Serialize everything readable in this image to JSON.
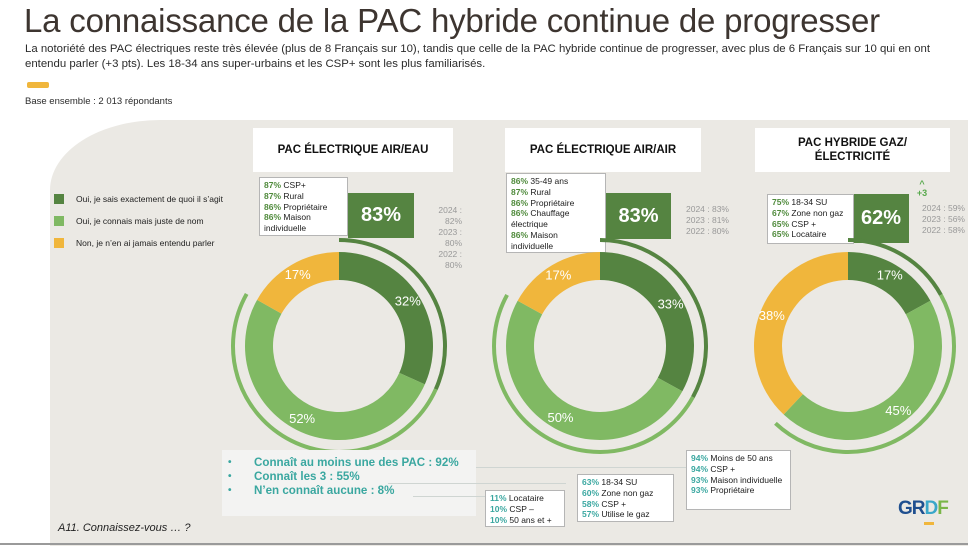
{
  "header": {
    "title": "La connaissance de la PAC hybride continue de progresser",
    "subtitle": "La notoriété des PAC électriques reste très élevée (plus de 8 Français sur 10), tandis que celle de la PAC hybride continue de progresser, avec plus de 6 Français sur 10 qui en ont entendu parler (+3 pts). Les 18-34 ans super-urbains et les CSP+ sont les plus familiarisés.",
    "base": "Base ensemble : 2 013 répondants"
  },
  "colors": {
    "dark_green": "#558441",
    "light_green": "#80b963",
    "orange": "#f0b63c",
    "teal": "#3aa7a0",
    "panel": "#ebe9e4"
  },
  "legend": [
    {
      "label": "Oui, je sais exactement de quoi il s’agit",
      "color": "#558441"
    },
    {
      "label": "Oui, je connais mais juste de nom",
      "color": "#80b963"
    },
    {
      "label": "Non, je n’en ai jamais entendu parler",
      "color": "#f0b63c"
    }
  ],
  "chart_data": [
    {
      "type": "pie",
      "title": "PAC ÉLECTRIQUE AIR/EAU",
      "categories": [
        "Oui, je sais exactement de quoi il s’agit",
        "Oui, je connais mais juste de nom",
        "Non, je n’en ai jamais entendu parler"
      ],
      "values": [
        32,
        52,
        17
      ],
      "labels": [
        "32%",
        "52%",
        "17%"
      ],
      "total_aware": "83%",
      "total_aware_value": 83,
      "history": [
        "2024 : 82%",
        "2023 : 80%",
        "2022 : 80%"
      ],
      "top_segments": [
        {
          "pct": "87%",
          "label": "CSP+"
        },
        {
          "pct": "87%",
          "label": "Rural"
        },
        {
          "pct": "86%",
          "label": "Propriétaire"
        },
        {
          "pct": "86%",
          "label": "Maison individuelle"
        }
      ]
    },
    {
      "type": "pie",
      "title": "PAC ÉLECTRIQUE AIR/AIR",
      "categories": [
        "Oui, je sais exactement de quoi il s’agit",
        "Oui, je connais mais juste de nom",
        "Non, je n’en ai jamais entendu parler"
      ],
      "values": [
        33,
        50,
        17
      ],
      "labels": [
        "33%",
        "50%",
        "17%"
      ],
      "total_aware": "83%",
      "total_aware_value": 83,
      "history": [
        "2024 : 83%",
        "2023 : 81%",
        "2022 : 80%"
      ],
      "top_segments": [
        {
          "pct": "86%",
          "label": "35-49 ans"
        },
        {
          "pct": "87%",
          "label": "Rural"
        },
        {
          "pct": "86%",
          "label": "Propriétaire"
        },
        {
          "pct": "86%",
          "label": "Chauffage électrique"
        },
        {
          "pct": "86%",
          "label": "Maison individuelle"
        }
      ]
    },
    {
      "type": "pie",
      "title": "PAC HYBRIDE GAZ/ÉLECTRICITÉ",
      "categories": [
        "Oui, je sais exactement de quoi il s’agit",
        "Oui, je connais mais juste de nom",
        "Non, je n’en ai jamais entendu parler"
      ],
      "values": [
        17,
        45,
        38
      ],
      "labels": [
        "17%",
        "45%",
        "38%"
      ],
      "total_aware": "62%",
      "total_aware_value": 62,
      "delta": "+3",
      "history": [
        "2024 : 59%",
        "2023 : 56%",
        "2022 : 58%"
      ],
      "top_segments": [
        {
          "pct": "75%",
          "label": "18-34 SU"
        },
        {
          "pct": "67%",
          "label": "Zone non gaz"
        },
        {
          "pct": "65%",
          "label": "CSP +"
        },
        {
          "pct": "65%",
          "label": "Locataire"
        }
      ]
    }
  ],
  "summary": {
    "items": [
      "Connaît au moins une des PAC : 92%",
      "Connaît les 3 : 55%",
      "N’en connaît aucune : 8%"
    ],
    "segments_any": [
      {
        "pct": "94%",
        "label": "Moins de 50 ans"
      },
      {
        "pct": "94%",
        "label": "CSP +"
      },
      {
        "pct": "93%",
        "label": "Maison individuelle"
      },
      {
        "pct": "93%",
        "label": "Propriétaire"
      }
    ],
    "segments_all3": [
      {
        "pct": "63%",
        "label": "18-34 SU"
      },
      {
        "pct": "60%",
        "label": "Zone non gaz"
      },
      {
        "pct": "58%",
        "label": "CSP +"
      },
      {
        "pct": "57%",
        "label": "Utilise le gaz"
      }
    ],
    "segments_none": [
      {
        "pct": "11%",
        "label": "Locataire"
      },
      {
        "pct": "10%",
        "label": "CSP –"
      },
      {
        "pct": "10%",
        "label": "50 ans et +"
      }
    ]
  },
  "footer": {
    "question": "A11. Connaissez-vous … ?",
    "logo": {
      "part1": "GR",
      "part2": "D",
      "part3": "F"
    }
  }
}
